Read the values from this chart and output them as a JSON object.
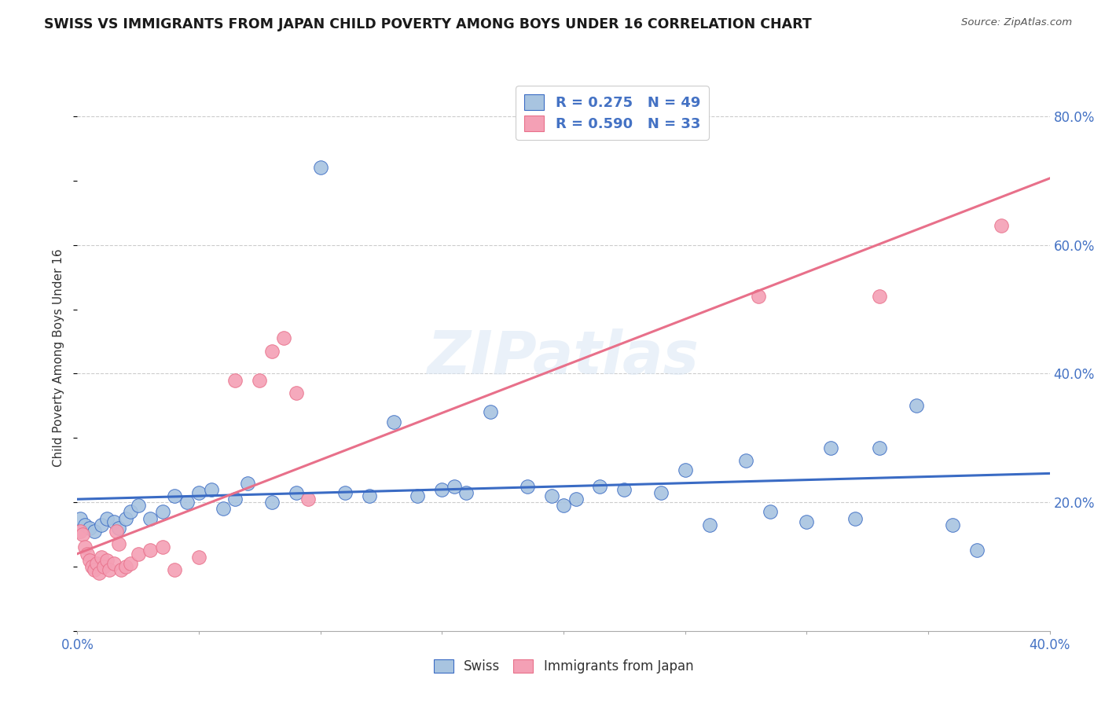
{
  "title": "SWISS VS IMMIGRANTS FROM JAPAN CHILD POVERTY AMONG BOYS UNDER 16 CORRELATION CHART",
  "source": "Source: ZipAtlas.com",
  "ylabel": "Child Poverty Among Boys Under 16",
  "xlim": [
    0.0,
    0.4
  ],
  "ylim": [
    0.0,
    0.85
  ],
  "watermark": "ZIPatlas",
  "swiss_color": "#a8c4e0",
  "japan_color": "#f4a0b5",
  "swiss_line_color": "#3a6bc4",
  "japan_line_color": "#e8708a",
  "swiss_R": 0.275,
  "swiss_N": 49,
  "japan_R": 0.59,
  "japan_N": 33,
  "swiss_x": [
    0.001,
    0.003,
    0.005,
    0.007,
    0.01,
    0.012,
    0.015,
    0.017,
    0.02,
    0.022,
    0.025,
    0.03,
    0.035,
    0.04,
    0.045,
    0.05,
    0.055,
    0.06,
    0.065,
    0.07,
    0.08,
    0.09,
    0.1,
    0.11,
    0.12,
    0.13,
    0.14,
    0.15,
    0.16,
    0.17,
    0.185,
    0.195,
    0.205,
    0.215,
    0.225,
    0.24,
    0.25,
    0.26,
    0.275,
    0.285,
    0.3,
    0.31,
    0.32,
    0.33,
    0.345,
    0.36,
    0.37,
    0.2,
    0.155
  ],
  "swiss_y": [
    0.175,
    0.165,
    0.16,
    0.155,
    0.165,
    0.175,
    0.17,
    0.16,
    0.175,
    0.185,
    0.195,
    0.175,
    0.185,
    0.21,
    0.2,
    0.215,
    0.22,
    0.19,
    0.205,
    0.23,
    0.2,
    0.215,
    0.72,
    0.215,
    0.21,
    0.325,
    0.21,
    0.22,
    0.215,
    0.34,
    0.225,
    0.21,
    0.205,
    0.225,
    0.22,
    0.215,
    0.25,
    0.165,
    0.265,
    0.185,
    0.17,
    0.285,
    0.175,
    0.285,
    0.35,
    0.165,
    0.125,
    0.195,
    0.225
  ],
  "japan_x": [
    0.001,
    0.002,
    0.003,
    0.004,
    0.005,
    0.006,
    0.007,
    0.008,
    0.009,
    0.01,
    0.011,
    0.012,
    0.013,
    0.015,
    0.016,
    0.017,
    0.018,
    0.02,
    0.022,
    0.025,
    0.03,
    0.035,
    0.04,
    0.05,
    0.065,
    0.075,
    0.08,
    0.085,
    0.09,
    0.095,
    0.28,
    0.33,
    0.38
  ],
  "japan_y": [
    0.155,
    0.15,
    0.13,
    0.12,
    0.11,
    0.1,
    0.095,
    0.105,
    0.09,
    0.115,
    0.1,
    0.11,
    0.095,
    0.105,
    0.155,
    0.135,
    0.095,
    0.1,
    0.105,
    0.12,
    0.125,
    0.13,
    0.095,
    0.115,
    0.39,
    0.39,
    0.435,
    0.455,
    0.37,
    0.205,
    0.52,
    0.52,
    0.63
  ],
  "background_color": "#ffffff",
  "grid_color": "#cccccc"
}
